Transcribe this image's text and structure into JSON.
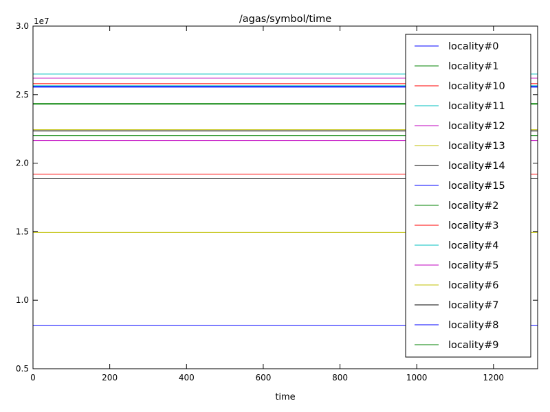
{
  "chart_data": {
    "type": "line",
    "title": "/agas/symbol/time",
    "xlabel": "time",
    "ylabel": "",
    "offset_label": "1e7",
    "xlim": [
      0,
      1315
    ],
    "ylim": [
      5000000,
      30000000
    ],
    "x_ticks": [
      0,
      200,
      400,
      600,
      800,
      1000,
      1200
    ],
    "x_tick_labels": [
      "0",
      "200",
      "400",
      "600",
      "800",
      "1000",
      "1200"
    ],
    "y_ticks": [
      5000000,
      10000000,
      15000000,
      20000000,
      25000000,
      30000000
    ],
    "y_tick_labels": [
      "0.5",
      "1.0",
      "1.5",
      "2.0",
      "2.5",
      "3.0"
    ],
    "grid": false,
    "legend_position": "upper-right",
    "series": [
      {
        "name": "locality#0",
        "color": "#0000ff",
        "x": [
          0,
          1315
        ],
        "y": [
          25550000,
          25550000
        ]
      },
      {
        "name": "locality#1",
        "color": "#008000",
        "x": [
          0,
          1315
        ],
        "y": [
          24350000,
          24350000
        ]
      },
      {
        "name": "locality#10",
        "color": "#ff0000",
        "x": [
          0,
          1315
        ],
        "y": [
          25800000,
          25800000
        ]
      },
      {
        "name": "locality#11",
        "color": "#00bfbf",
        "x": [
          0,
          1315
        ],
        "y": [
          26500000,
          26500000
        ]
      },
      {
        "name": "locality#12",
        "color": "#bf00bf",
        "x": [
          0,
          1315
        ],
        "y": [
          26200000,
          26200000
        ]
      },
      {
        "name": "locality#13",
        "color": "#bfbf00",
        "x": [
          0,
          1315
        ],
        "y": [
          22450000,
          22450000
        ]
      },
      {
        "name": "locality#14",
        "color": "#000000",
        "x": [
          0,
          1315
        ],
        "y": [
          22350000,
          22350000
        ]
      },
      {
        "name": "locality#15",
        "color": "#0000ff",
        "x": [
          0,
          1315
        ],
        "y": [
          25600000,
          25600000
        ]
      },
      {
        "name": "locality#2",
        "color": "#008000",
        "x": [
          0,
          1315
        ],
        "y": [
          22000000,
          22000000
        ]
      },
      {
        "name": "locality#3",
        "color": "#ff0000",
        "x": [
          0,
          1315
        ],
        "y": [
          19200000,
          19200000
        ]
      },
      {
        "name": "locality#4",
        "color": "#00bfbf",
        "x": [
          0,
          1315
        ],
        "y": [
          25650000,
          25650000
        ]
      },
      {
        "name": "locality#5",
        "color": "#bf00bf",
        "x": [
          0,
          1315
        ],
        "y": [
          21650000,
          21650000
        ]
      },
      {
        "name": "locality#6",
        "color": "#bfbf00",
        "x": [
          0,
          1315
        ],
        "y": [
          14950000,
          14950000
        ]
      },
      {
        "name": "locality#7",
        "color": "#000000",
        "x": [
          0,
          1315
        ],
        "y": [
          18900000,
          18900000
        ]
      },
      {
        "name": "locality#8",
        "color": "#0000ff",
        "x": [
          0,
          1315
        ],
        "y": [
          8150000,
          8150000
        ]
      },
      {
        "name": "locality#9",
        "color": "#008000",
        "x": [
          0,
          1315
        ],
        "y": [
          24300000,
          24300000
        ]
      }
    ]
  }
}
